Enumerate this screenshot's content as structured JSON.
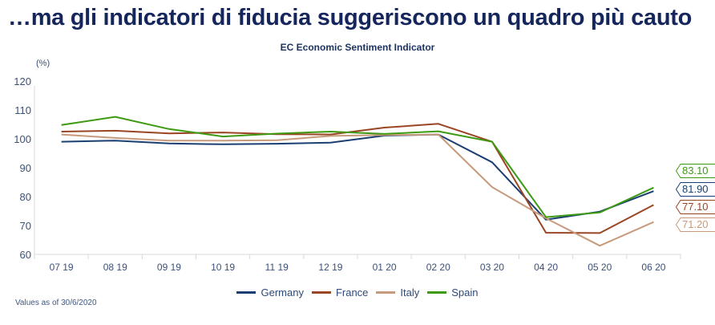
{
  "header": {
    "title": "…ma  gli indicatori di fiducia suggeriscono un quadro più cauto"
  },
  "footnote": "Values as of 30/6/2020",
  "chart_data": {
    "type": "line",
    "title": "EC Economic Sentiment Indicator",
    "ylabel": "(%)",
    "xlabel": "",
    "ylim": [
      60,
      120
    ],
    "yticks": [
      60,
      70,
      80,
      90,
      100,
      110,
      120
    ],
    "grid": false,
    "legend_position": "bottom-center",
    "categories": [
      "07 19",
      "08 19",
      "09 19",
      "10 19",
      "11 19",
      "12 19",
      "01 20",
      "02 20",
      "03 20",
      "04 20",
      "05 20",
      "06 20"
    ],
    "series": [
      {
        "name": "Germany",
        "color": "#1b3f72",
        "values": [
          99.0,
          99.4,
          98.4,
          98.1,
          98.3,
          98.7,
          101.1,
          101.5,
          91.9,
          72.0,
          74.8,
          81.9
        ],
        "end_label": "81.90"
      },
      {
        "name": "France",
        "color": "#9a4523",
        "values": [
          102.5,
          102.8,
          101.9,
          102.2,
          101.6,
          101.5,
          103.9,
          105.2,
          99.0,
          67.5,
          67.4,
          77.1
        ],
        "end_label": "77.10"
      },
      {
        "name": "Italy",
        "color": "#c79a7b",
        "values": [
          101.5,
          100.3,
          99.4,
          99.4,
          99.5,
          101.0,
          101.3,
          101.5,
          83.3,
          72.5,
          63.0,
          71.2
        ],
        "end_label": "71.20"
      },
      {
        "name": "Spain",
        "color": "#3d9a12",
        "values": [
          104.8,
          107.6,
          103.4,
          100.8,
          101.8,
          102.5,
          101.7,
          102.6,
          99.0,
          72.9,
          74.5,
          83.1
        ],
        "end_label": "83.10"
      }
    ],
    "end_label_order": [
      "Spain",
      "Germany",
      "France",
      "Italy"
    ]
  }
}
